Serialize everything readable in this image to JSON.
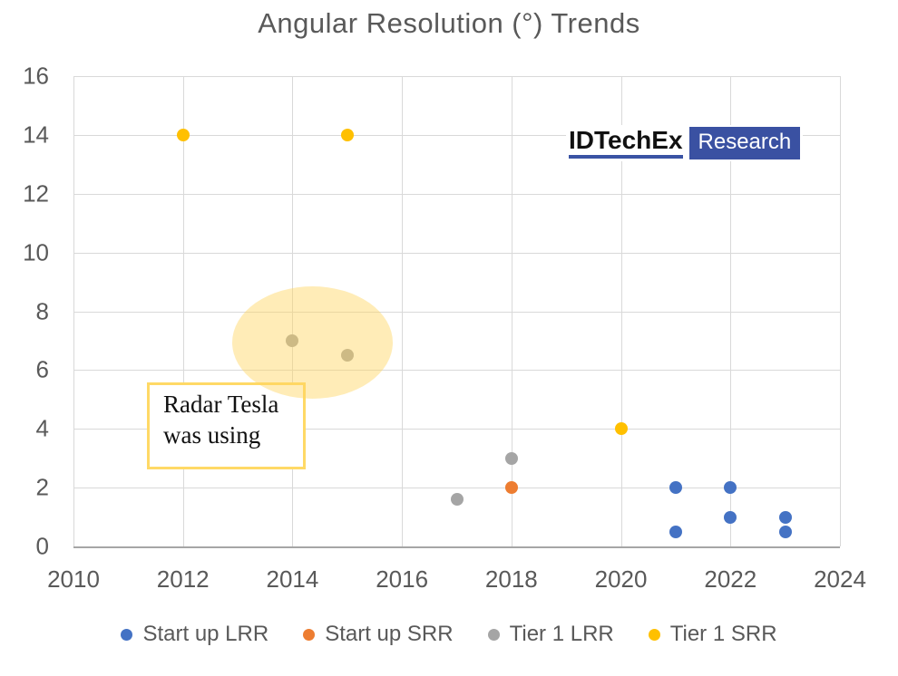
{
  "title": "Angular Resolution (°) Trends",
  "logo": {
    "brand": "IDTechEx",
    "suffix": "Research"
  },
  "annotation": {
    "text": "Radar Tesla was using"
  },
  "colors": {
    "title_text": "#595959",
    "tick_text": "#595959",
    "gridline": "#D9D9D9",
    "axis_line": "#A6A6A6",
    "highlight_fill": "rgba(255,213,95,0.45)",
    "callout_border": "#FFD966",
    "logo_blue": "#3A51A2"
  },
  "chart_data": {
    "type": "scatter",
    "title": "Angular Resolution (°) Trends",
    "xlabel": "",
    "ylabel": "",
    "xlim": [
      2010,
      2024
    ],
    "ylim": [
      0,
      16
    ],
    "x_ticks": [
      2010,
      2012,
      2014,
      2016,
      2018,
      2020,
      2022,
      2024
    ],
    "y_ticks": [
      0,
      2,
      4,
      6,
      8,
      10,
      12,
      14,
      16
    ],
    "grid": true,
    "legend_position": "bottom",
    "series": [
      {
        "name": "Start up LRR",
        "color": "#4472C4",
        "points": [
          [
            2021,
            0.5
          ],
          [
            2021,
            2
          ],
          [
            2022,
            1
          ],
          [
            2022,
            2
          ],
          [
            2023,
            0.5
          ],
          [
            2023,
            1
          ]
        ]
      },
      {
        "name": "Start up SRR",
        "color": "#ED7D31",
        "points": [
          [
            2018,
            2
          ]
        ]
      },
      {
        "name": "Tier 1 LRR",
        "color": "#A5A5A5",
        "points": [
          [
            2014,
            7
          ],
          [
            2015,
            6.5
          ],
          [
            2017,
            1.6
          ],
          [
            2018,
            3
          ]
        ]
      },
      {
        "name": "Tier 1 SRR",
        "color": "#FFC000",
        "points": [
          [
            2012,
            14
          ],
          [
            2015,
            14
          ],
          [
            2020,
            4
          ]
        ]
      }
    ],
    "annotations": [
      {
        "text": "Radar Tesla was using",
        "shape": "ellipse-highlight",
        "highlights": "Tier 1 LRR points at 2014 and 2015",
        "ellipse_center_data": [
          2014.45,
          6.85
        ],
        "ellipse_rx_years": 1.47,
        "ellipse_ry_units": 1.9
      }
    ]
  }
}
